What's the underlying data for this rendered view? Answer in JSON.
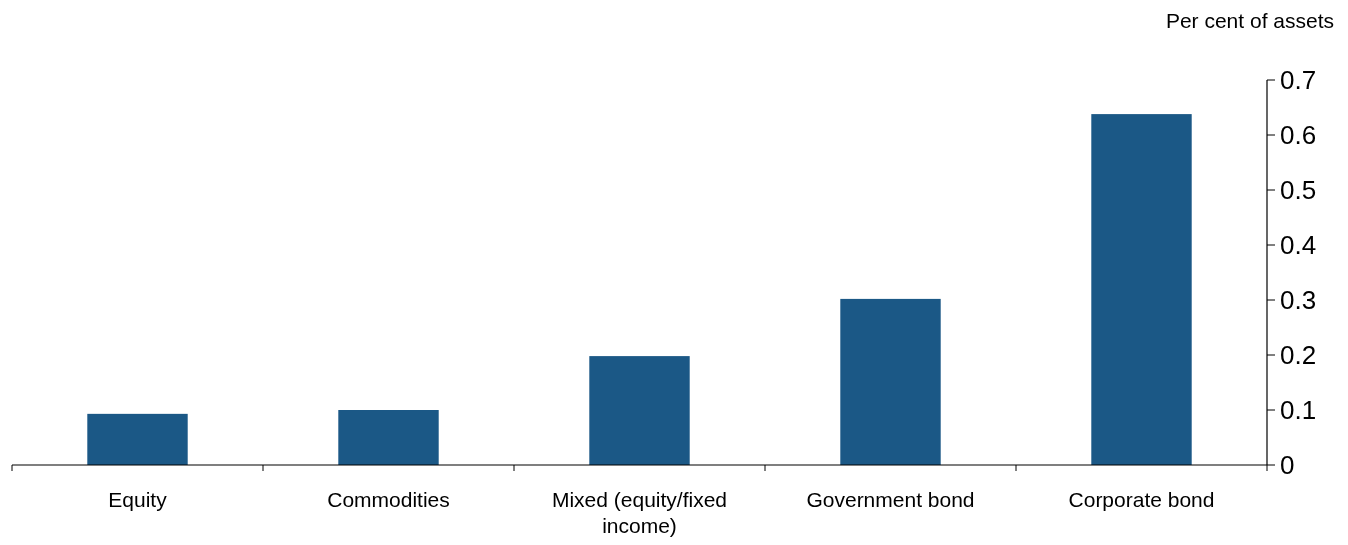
{
  "chart_data": {
    "type": "bar",
    "ylabel": "Per cent of assets",
    "categories": [
      "Equity",
      "Commodities",
      "Mixed (equity/fixed income)",
      "Government bond",
      "Corporate bond"
    ],
    "values": [
      0.093,
      0.1,
      0.198,
      0.302,
      0.638
    ],
    "color": "#1b5886",
    "ylim": [
      0,
      0.7
    ],
    "yticks": [
      0,
      0.1,
      0.2,
      0.3,
      0.4,
      0.5,
      0.6,
      0.7
    ],
    "grid": false
  }
}
